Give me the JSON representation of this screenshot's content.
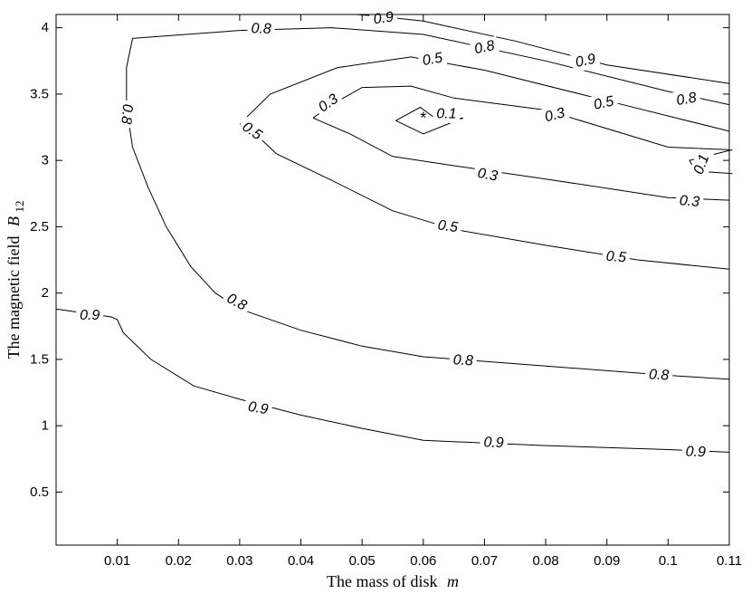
{
  "chart_data": {
    "type": "contour",
    "title": "",
    "xlabel": "The mass of disk",
    "xlabel_var": "m",
    "ylabel": "The magnetic field",
    "ylabel_var": "B",
    "ylabel_sub": "12",
    "xlim": [
      0,
      0.11
    ],
    "ylim": [
      0.1,
      4.1
    ],
    "xticks": [
      0.01,
      0.02,
      0.03,
      0.04,
      0.05,
      0.06,
      0.07,
      0.08,
      0.09,
      0.1,
      0.11
    ],
    "xtick_labels": [
      "0.01",
      "0.02",
      "0.03",
      "0.04",
      "0.05",
      "0.06",
      "0.07",
      "0.08",
      "0.09",
      "0.1",
      "0.11"
    ],
    "yticks": [
      0.5,
      1,
      1.5,
      2,
      2.5,
      3,
      3.5,
      4
    ],
    "ytick_labels": [
      "0.5",
      "1",
      "1.5",
      "2",
      "2.5",
      "3",
      "3.5",
      "4"
    ],
    "grid": false,
    "optimum_marker": {
      "symbol": "*",
      "x": 0.06,
      "y": 3.32
    },
    "contours": [
      {
        "level": "0.9",
        "points": [
          [
            0,
            1.88
          ],
          [
            0.009,
            1.82
          ],
          [
            0.01,
            1.8
          ],
          [
            0.011,
            1.7
          ],
          [
            0.0155,
            1.5
          ],
          [
            0.0225,
            1.3
          ],
          [
            0.03,
            1.2
          ],
          [
            0.04,
            1.08
          ],
          [
            0.05,
            0.98
          ],
          [
            0.06,
            0.89
          ],
          [
            0.08,
            0.85
          ],
          [
            0.1,
            0.82
          ],
          [
            0.11,
            0.8
          ]
        ],
        "labels": [
          {
            "text": "0.9",
            "x": 0.0055,
            "y": 1.83,
            "rot": 0
          },
          {
            "text": "0.9",
            "x": 0.033,
            "y": 1.13,
            "rot": 10
          },
          {
            "text": "0.9",
            "x": 0.0715,
            "y": 0.87,
            "rot": 2
          },
          {
            "text": "0.9",
            "x": 0.1045,
            "y": 0.8,
            "rot": 2
          }
        ]
      },
      {
        "level": "0.8",
        "points": [
          [
            0.0125,
            3.92
          ],
          [
            0.0115,
            3.7
          ],
          [
            0.0115,
            3.4
          ],
          [
            0.0125,
            3.1
          ],
          [
            0.015,
            2.8
          ],
          [
            0.018,
            2.5
          ],
          [
            0.022,
            2.2
          ],
          [
            0.026,
            2.0
          ],
          [
            0.03,
            1.88
          ],
          [
            0.04,
            1.72
          ],
          [
            0.05,
            1.6
          ],
          [
            0.06,
            1.52
          ],
          [
            0.08,
            1.45
          ],
          [
            0.1,
            1.38
          ],
          [
            0.11,
            1.35
          ]
        ],
        "labels": [
          {
            "text": "0.8",
            "x": 0.0115,
            "y": 3.35,
            "rot": 95
          },
          {
            "text": "0.8",
            "x": 0.0295,
            "y": 1.93,
            "rot": 28
          },
          {
            "text": "0.8",
            "x": 0.0665,
            "y": 1.49,
            "rot": 3
          },
          {
            "text": "0.8",
            "x": 0.0985,
            "y": 1.38,
            "rot": 3
          }
        ]
      },
      {
        "level": "0.8",
        "points": [
          [
            0.0125,
            3.92
          ],
          [
            0.03,
            3.98
          ],
          [
            0.045,
            4.0
          ],
          [
            0.06,
            3.95
          ],
          [
            0.08,
            3.75
          ],
          [
            0.1,
            3.52
          ],
          [
            0.11,
            3.42
          ]
        ],
        "labels": [
          {
            "text": "0.8",
            "x": 0.0335,
            "y": 3.99,
            "rot": 2
          },
          {
            "text": "0.8",
            "x": 0.07,
            "y": 3.85,
            "rot": -12
          },
          {
            "text": "0.8",
            "x": 0.103,
            "y": 3.46,
            "rot": -10
          }
        ]
      },
      {
        "level": "0.9",
        "points": [
          [
            0.049,
            4.1
          ],
          [
            0.052,
            4.09
          ],
          [
            0.06,
            4.05
          ],
          [
            0.075,
            3.9
          ],
          [
            0.09,
            3.72
          ],
          [
            0.11,
            3.58
          ]
        ],
        "labels": [
          {
            "text": "0.9",
            "x": 0.0535,
            "y": 4.07,
            "rot": -8
          },
          {
            "text": "0.9",
            "x": 0.0865,
            "y": 3.75,
            "rot": -12
          }
        ]
      },
      {
        "level": "0.5",
        "points": [
          [
            0.03,
            3.28
          ],
          [
            0.033,
            3.18
          ],
          [
            0.036,
            3.05
          ],
          [
            0.045,
            2.85
          ],
          [
            0.055,
            2.62
          ],
          [
            0.065,
            2.48
          ],
          [
            0.08,
            2.36
          ],
          [
            0.095,
            2.25
          ],
          [
            0.11,
            2.18
          ]
        ],
        "labels": [
          {
            "text": "0.5",
            "x": 0.032,
            "y": 3.22,
            "rot": 35
          },
          {
            "text": "0.5",
            "x": 0.064,
            "y": 2.5,
            "rot": 8
          },
          {
            "text": "0.5",
            "x": 0.0915,
            "y": 2.27,
            "rot": 5
          }
        ]
      },
      {
        "level": "0.5",
        "points": [
          [
            0.031,
            3.32
          ],
          [
            0.035,
            3.5
          ],
          [
            0.046,
            3.7
          ],
          [
            0.058,
            3.78
          ],
          [
            0.07,
            3.68
          ],
          [
            0.09,
            3.45
          ],
          [
            0.11,
            3.22
          ]
        ],
        "labels": [
          {
            "text": "0.5",
            "x": 0.0615,
            "y": 3.76,
            "rot": -10
          },
          {
            "text": "0.5",
            "x": 0.0895,
            "y": 3.43,
            "rot": -12
          }
        ]
      },
      {
        "level": "0.3",
        "points": [
          [
            0.042,
            3.32
          ],
          [
            0.045,
            3.42
          ],
          [
            0.05,
            3.55
          ],
          [
            0.058,
            3.56
          ],
          [
            0.065,
            3.47
          ],
          [
            0.08,
            3.38
          ],
          [
            0.1,
            3.1
          ],
          [
            0.11,
            3.08
          ]
        ],
        "labels": [
          {
            "text": "0.3",
            "x": 0.0445,
            "y": 3.43,
            "rot": -35
          },
          {
            "text": "0.3",
            "x": 0.0815,
            "y": 3.34,
            "rot": -15
          }
        ]
      },
      {
        "level": "0.3",
        "points": [
          [
            0.042,
            3.32
          ],
          [
            0.048,
            3.2
          ],
          [
            0.055,
            3.03
          ],
          [
            0.065,
            2.96
          ],
          [
            0.08,
            2.86
          ],
          [
            0.1,
            2.72
          ],
          [
            0.11,
            2.7
          ]
        ],
        "labels": [
          {
            "text": "0.3",
            "x": 0.0705,
            "y": 2.89,
            "rot": 10
          },
          {
            "text": "0.3",
            "x": 0.1035,
            "y": 2.69,
            "rot": 5
          }
        ]
      },
      {
        "level": "0.1",
        "points": [
          [
            0.0555,
            3.3
          ],
          [
            0.0595,
            3.4
          ],
          [
            0.0625,
            3.3
          ],
          [
            0.0665,
            3.32
          ],
          [
            0.06,
            3.2
          ],
          [
            0.0555,
            3.3
          ]
        ],
        "labels": [
          {
            "text": "0.1",
            "x": 0.0638,
            "y": 3.35,
            "rot": 0
          }
        ]
      },
      {
        "level": "0.1",
        "points": [
          [
            0.1105,
            3.08
          ],
          [
            0.1035,
            3.0
          ],
          [
            0.1045,
            2.92
          ],
          [
            0.1105,
            2.9
          ]
        ],
        "labels": [
          {
            "text": "0.1",
            "x": 0.1055,
            "y": 2.97,
            "rot": -70
          }
        ]
      }
    ]
  }
}
